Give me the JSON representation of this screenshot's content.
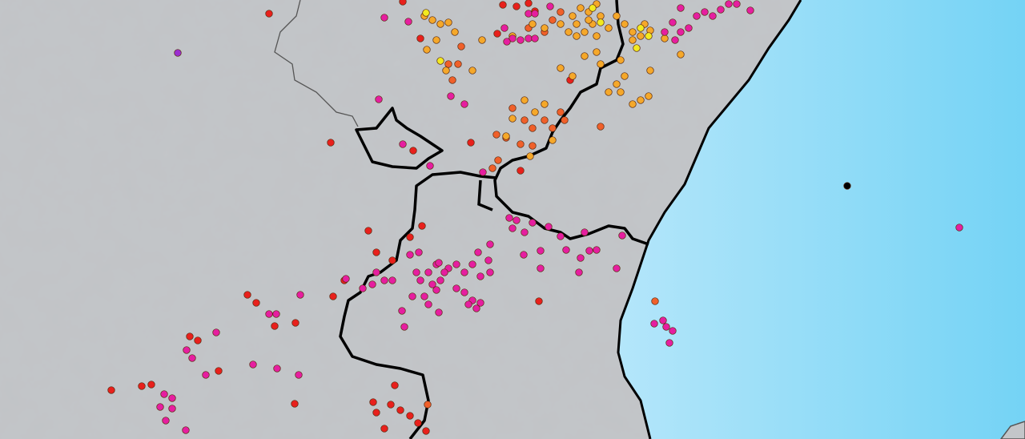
{
  "map": {
    "colors": {
      "land": "#c3c6c9",
      "sea_near": "#b4e6fa",
      "sea_far": "#74d3f5",
      "border": "#000000",
      "minor_border": "#555555"
    },
    "marker_classes": {
      "red": "#e8201c",
      "orange_red": "#f0602a",
      "orange": "#f5a82a",
      "yellow": "#f2ea20",
      "magenta": "#e61ea0",
      "purple": "#9a2ed0",
      "black": "#000000"
    }
  }
}
